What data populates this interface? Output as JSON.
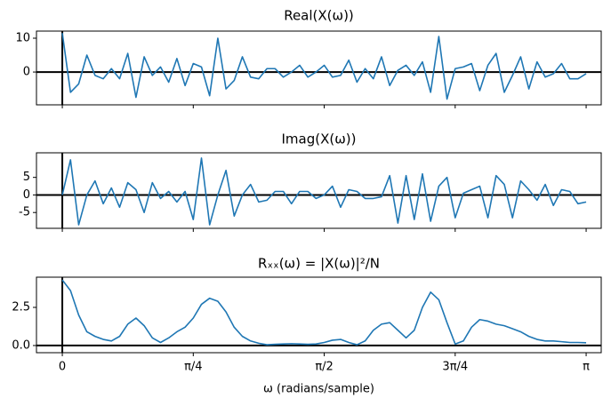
{
  "chart_data": [
    {
      "type": "line",
      "title": "Real(X(ω))",
      "x": [
        0,
        0.0491,
        0.0982,
        0.1473,
        0.1963,
        0.2454,
        0.2945,
        0.3436,
        0.3927,
        0.4418,
        0.4909,
        0.54,
        0.589,
        0.6381,
        0.6872,
        0.7363,
        0.7854,
        0.8345,
        0.8836,
        0.9327,
        0.9817,
        1.0308,
        1.0799,
        1.129,
        1.1781,
        1.2272,
        1.2763,
        1.3254,
        1.3744,
        1.4235,
        1.4726,
        1.5217,
        1.5708,
        1.6199,
        1.669,
        1.7181,
        1.7671,
        1.8162,
        1.8653,
        1.9144,
        1.9635,
        2.0126,
        2.0617,
        2.1108,
        2.1598,
        2.2089,
        2.258,
        2.3071,
        2.3562,
        2.4053,
        2.4544,
        2.5035,
        2.5525,
        2.6016,
        2.6507,
        2.6998,
        2.7489,
        2.798,
        2.8471,
        2.8962,
        2.9452,
        2.9943,
        3.0434,
        3.0925,
        3.1416
      ],
      "series": [
        {
          "color": "#1f77b4",
          "values": [
            11.5,
            -6,
            -3.5,
            5,
            -1,
            -2,
            1,
            -2,
            5.5,
            -7.5,
            4.5,
            -1,
            1.5,
            -3,
            4,
            -4,
            2.5,
            1.5,
            -7,
            10,
            -5,
            -2.5,
            4.5,
            -1.5,
            -2,
            1,
            1,
            -1.5,
            0,
            2,
            -1.5,
            0,
            2,
            -1.5,
            -1,
            3.5,
            -3,
            1,
            -2,
            4.5,
            -4,
            0.5,
            2,
            -1,
            3,
            -6,
            10.5,
            -8,
            1,
            1.5,
            2.5,
            -5.5,
            2,
            5.5,
            -6,
            -1,
            4.5,
            -5,
            3,
            -1.5,
            -0.5,
            2.5,
            -2,
            -2,
            -0.5
          ]
        }
      ],
      "xlim": [
        -0.155,
        3.232
      ],
      "ylim": [
        -9.7,
        12.1
      ],
      "yticks": [
        0,
        10
      ]
    },
    {
      "type": "line",
      "title": "Imag(X(ω))",
      "x": [
        0,
        0.0491,
        0.0982,
        0.1473,
        0.1963,
        0.2454,
        0.2945,
        0.3436,
        0.3927,
        0.4418,
        0.4909,
        0.54,
        0.589,
        0.6381,
        0.6872,
        0.7363,
        0.7854,
        0.8345,
        0.8836,
        0.9327,
        0.9817,
        1.0308,
        1.0799,
        1.129,
        1.1781,
        1.2272,
        1.2763,
        1.3254,
        1.3744,
        1.4235,
        1.4726,
        1.5217,
        1.5708,
        1.6199,
        1.669,
        1.7181,
        1.7671,
        1.8162,
        1.8653,
        1.9144,
        1.9635,
        2.0126,
        2.0617,
        2.1108,
        2.1598,
        2.2089,
        2.258,
        2.3071,
        2.3562,
        2.4053,
        2.4544,
        2.5035,
        2.5525,
        2.6016,
        2.6507,
        2.6998,
        2.7489,
        2.798,
        2.8471,
        2.8962,
        2.9452,
        2.9943,
        3.0434,
        3.0925,
        3.1416
      ],
      "series": [
        {
          "color": "#1f77b4",
          "values": [
            0,
            10,
            -8.5,
            0,
            4,
            -2.5,
            2,
            -3.5,
            3.5,
            1.5,
            -5,
            3.5,
            -1,
            1,
            -2,
            1,
            -7,
            10.5,
            -8.5,
            0,
            7,
            -6,
            0,
            3,
            -2,
            -1.5,
            1,
            1,
            -2.5,
            1,
            1,
            -1,
            0,
            2.5,
            -3.5,
            1.5,
            1,
            -1,
            -1,
            -0.5,
            5.5,
            -8,
            5.5,
            -7,
            6,
            -7.5,
            2.5,
            5,
            -6.5,
            0.5,
            1.5,
            2.5,
            -6.5,
            5.5,
            3,
            -6.5,
            4,
            1.5,
            -1.5,
            3,
            -3,
            1.5,
            1,
            -2.5,
            -2
          ]
        }
      ],
      "xlim": [
        -0.155,
        3.232
      ],
      "ylim": [
        -9.5,
        12
      ],
      "yticks": [
        -5,
        0,
        5
      ]
    },
    {
      "type": "line",
      "title": "Rₓₓ(ω) = |X(ω)|²/N",
      "x_label": "ω (radians/sample)",
      "x": [
        0,
        0.0491,
        0.0982,
        0.1473,
        0.1963,
        0.2454,
        0.2945,
        0.3436,
        0.3927,
        0.4418,
        0.4909,
        0.54,
        0.589,
        0.6381,
        0.6872,
        0.7363,
        0.7854,
        0.8345,
        0.8836,
        0.9327,
        0.9817,
        1.0308,
        1.0799,
        1.129,
        1.1781,
        1.2272,
        1.2763,
        1.3254,
        1.3744,
        1.4235,
        1.4726,
        1.5217,
        1.5708,
        1.6199,
        1.669,
        1.7181,
        1.7671,
        1.8162,
        1.8653,
        1.9144,
        1.9635,
        2.0126,
        2.0617,
        2.1108,
        2.1598,
        2.2089,
        2.258,
        2.3071,
        2.3562,
        2.4053,
        2.4544,
        2.5035,
        2.5525,
        2.6016,
        2.6507,
        2.6998,
        2.7489,
        2.798,
        2.8471,
        2.8962,
        2.9452,
        2.9943,
        3.0434,
        3.0925,
        3.1416
      ],
      "series": [
        {
          "color": "#1f77b4",
          "values": [
            4.3,
            3.6,
            2.0,
            0.9,
            0.6,
            0.4,
            0.3,
            0.6,
            1.4,
            1.8,
            1.3,
            0.5,
            0.2,
            0.5,
            0.9,
            1.2,
            1.8,
            2.7,
            3.1,
            2.9,
            2.2,
            1.2,
            0.6,
            0.3,
            0.15,
            0.05,
            0.08,
            0.1,
            0.12,
            0.1,
            0.08,
            0.1,
            0.2,
            0.35,
            0.4,
            0.2,
            0.05,
            0.3,
            1.0,
            1.4,
            1.5,
            1.0,
            0.5,
            1.0,
            2.5,
            3.5,
            3.0,
            1.5,
            0.1,
            0.3,
            1.2,
            1.7,
            1.6,
            1.4,
            1.3,
            1.1,
            0.9,
            0.6,
            0.4,
            0.3,
            0.3,
            0.25,
            0.2,
            0.2,
            0.18
          ]
        }
      ],
      "xlim": [
        -0.155,
        3.232
      ],
      "ylim": [
        -0.47,
        4.48
      ],
      "yticks": [
        {
          "value": 0,
          "label": "0.0"
        },
        2.5
      ],
      "xticks": [
        {
          "value": 0,
          "label": "0"
        },
        {
          "value": 0.7854,
          "label": "π/4"
        },
        {
          "value": 1.5708,
          "label": "π/2"
        },
        {
          "value": 2.3562,
          "label": "3π/4"
        },
        {
          "value": 3.1416,
          "label": "π"
        }
      ]
    }
  ]
}
